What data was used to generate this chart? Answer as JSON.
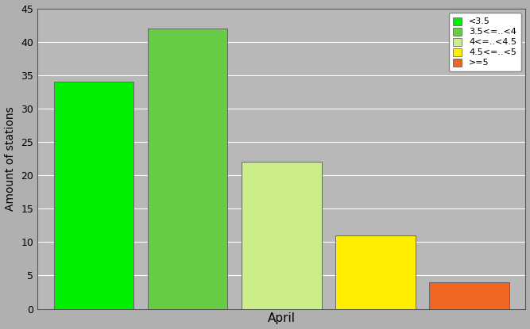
{
  "bars": [
    {
      "label": "<3.5",
      "value": 34,
      "color": "#00ee00"
    },
    {
      "label": "3.5<=..<4",
      "value": 42,
      "color": "#66cc44"
    },
    {
      "label": "4<=..<4.5",
      "value": 22,
      "color": "#ccee88"
    },
    {
      "label": "4.5<=..<5",
      "value": 11,
      "color": "#ffee00"
    },
    {
      "label": ">=5",
      "value": 4,
      "color": "#ee6622"
    }
  ],
  "ylabel": "Amount of stations",
  "xlabel": "April",
  "ylim": [
    0,
    45
  ],
  "yticks": [
    0,
    5,
    10,
    15,
    20,
    25,
    30,
    35,
    40,
    45
  ],
  "background_color": "#b0b0b0",
  "plot_bg_color": "#b8b8b8",
  "grid_color": "#ffffff",
  "bar_edge_color": "#666666",
  "legend_labels": [
    "<3.5",
    "3.5<=..<4",
    "4<=..<4.5",
    "4.5<=..<5",
    ">=5"
  ],
  "legend_colors": [
    "#00ee00",
    "#66cc44",
    "#ccee88",
    "#ffee00",
    "#ee6622"
  ],
  "figwidth": 6.67,
  "figheight": 4.15,
  "dpi": 100
}
